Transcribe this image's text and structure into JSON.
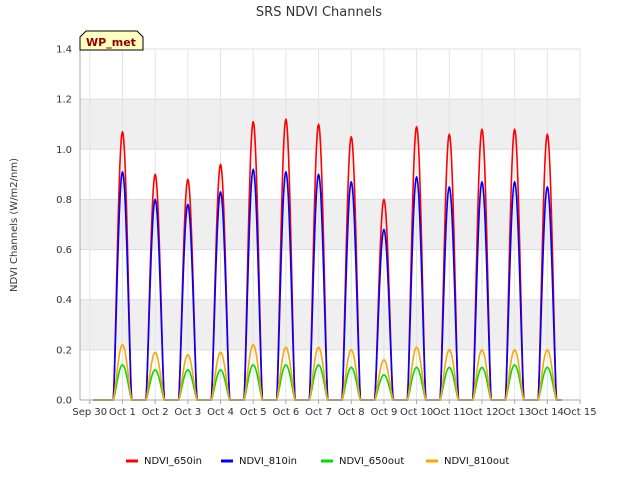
{
  "chart_data": {
    "type": "line",
    "title": "SRS NDVI Channels",
    "xlabel": "",
    "ylabel": "NDVI Channels (W/m2/nm)",
    "badge": "WP_met",
    "xlim": [
      -0.3,
      15
    ],
    "ylim": [
      0,
      1.4
    ],
    "grid": true,
    "legend_position": "bottom-center",
    "y_ticks": [
      0.0,
      0.2,
      0.4,
      0.6,
      0.8,
      1.0,
      1.2,
      1.4
    ],
    "y_tick_labels": [
      "0.0",
      "0.2",
      "0.4",
      "0.6",
      "0.8",
      "1.0",
      "1.2",
      "1.4"
    ],
    "x_ticks": [
      0,
      1,
      2,
      3,
      4,
      5,
      6,
      7,
      8,
      9,
      10,
      11,
      12,
      13,
      14,
      15
    ],
    "x_tick_labels": [
      "Sep 30",
      "Oct 1",
      "Oct 2",
      "Oct 3",
      "Oct 4",
      "Oct 5",
      "Oct 6",
      "Oct 7",
      "Oct 8",
      "Oct 9",
      "Oct 10",
      "Oct 11",
      "Oct 12",
      "Oct 13",
      "Oct 14",
      "Oct 15"
    ],
    "series": [
      {
        "name": "NDVI_650in",
        "color": "#ff0000",
        "daily_peaks": [
          1.07,
          0.9,
          0.88,
          0.94,
          1.11,
          1.12,
          1.1,
          1.05,
          0.8,
          1.09,
          1.06,
          1.08,
          1.08,
          1.06
        ]
      },
      {
        "name": "NDVI_810in",
        "color": "#0000ff",
        "daily_peaks": [
          0.91,
          0.8,
          0.78,
          0.83,
          0.92,
          0.91,
          0.9,
          0.87,
          0.68,
          0.89,
          0.85,
          0.87,
          0.87,
          0.85
        ]
      },
      {
        "name": "NDVI_650out",
        "color": "#00dd00",
        "daily_peaks": [
          0.14,
          0.12,
          0.12,
          0.12,
          0.14,
          0.14,
          0.14,
          0.13,
          0.1,
          0.13,
          0.13,
          0.13,
          0.14,
          0.13
        ]
      },
      {
        "name": "NDVI_810out",
        "color": "#ffa500",
        "daily_peaks": [
          0.22,
          0.19,
          0.18,
          0.19,
          0.22,
          0.21,
          0.21,
          0.2,
          0.16,
          0.21,
          0.2,
          0.2,
          0.2,
          0.2
        ]
      }
    ]
  }
}
